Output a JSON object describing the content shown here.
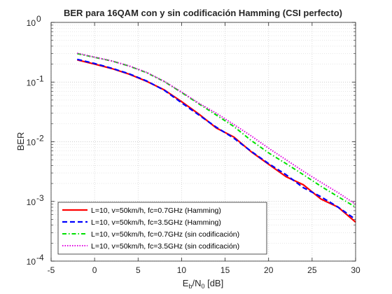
{
  "chart_data": {
    "type": "line",
    "title": "BER para 16QAM con y sin codificación Hamming (CSI perfecto)",
    "xlabel_base": "E",
    "xlabel_sub1": "b",
    "xlabel_mid": "/N",
    "xlabel_sub2": "0",
    "xlabel_tail": " [dB]",
    "ylabel": "BER",
    "xlim": [
      -5,
      30
    ],
    "ylim": [
      0.0001,
      1
    ],
    "yscale": "log",
    "grid": true,
    "legend_position": "bottom-left",
    "x_ticks": [
      -5,
      0,
      5,
      10,
      15,
      20,
      25,
      30
    ],
    "x_tick_labels": [
      "-5",
      "0",
      "5",
      "10",
      "15",
      "20",
      "25",
      "30"
    ],
    "y_ticks": [
      0.0001,
      0.001,
      0.01,
      0.1,
      1
    ],
    "y_tick_labels": [
      {
        "base": "10",
        "exp": "-4"
      },
      {
        "base": "10",
        "exp": "-3"
      },
      {
        "base": "10",
        "exp": "-2"
      },
      {
        "base": "10",
        "exp": "-1"
      },
      {
        "base": "10",
        "exp": "0"
      }
    ],
    "x": [
      -2,
      0,
      2,
      4,
      6,
      8,
      10,
      12,
      14,
      16,
      18,
      20,
      22,
      24,
      26,
      28,
      30
    ],
    "series": [
      {
        "name": "L=10, v=50km/h, fc=0.7GHz (Hamming)",
        "color": "#ff0000",
        "dash": "",
        "width": 2.2,
        "values": [
          0.235,
          0.2,
          0.168,
          0.135,
          0.103,
          0.074,
          0.047,
          0.029,
          0.017,
          0.012,
          0.0068,
          0.0042,
          0.0026,
          0.0019,
          0.0011,
          0.0008,
          0.00045
        ]
      },
      {
        "name": "L=10, v=50km/h, fc=3.5GHz (Hamming)",
        "color": "#0000ff",
        "dash": "7,4",
        "width": 2.2,
        "values": [
          0.24,
          0.205,
          0.17,
          0.137,
          0.104,
          0.073,
          0.045,
          0.028,
          0.0175,
          0.0115,
          0.0069,
          0.0043,
          0.0028,
          0.0017,
          0.0012,
          0.0008,
          0.0005
        ]
      },
      {
        "name": "L=10, v=50km/h, fc=0.7GHz (sin codificación)",
        "color": "#00e000",
        "dash": "6,3,1.5,3",
        "width": 2.0,
        "values": [
          0.3,
          0.26,
          0.225,
          0.185,
          0.143,
          0.102,
          0.067,
          0.043,
          0.028,
          0.018,
          0.0105,
          0.0065,
          0.0043,
          0.0028,
          0.0018,
          0.0012,
          0.0008
        ]
      },
      {
        "name": "L=10, v=50km/h, fc=3.5GHz (sin codificación)",
        "color": "#e000e0",
        "dash": "1.5,2",
        "width": 2.0,
        "values": [
          0.305,
          0.262,
          0.226,
          0.186,
          0.145,
          0.103,
          0.068,
          0.044,
          0.03,
          0.0195,
          0.0125,
          0.0078,
          0.005,
          0.0032,
          0.0021,
          0.0014,
          0.0009
        ]
      }
    ]
  }
}
